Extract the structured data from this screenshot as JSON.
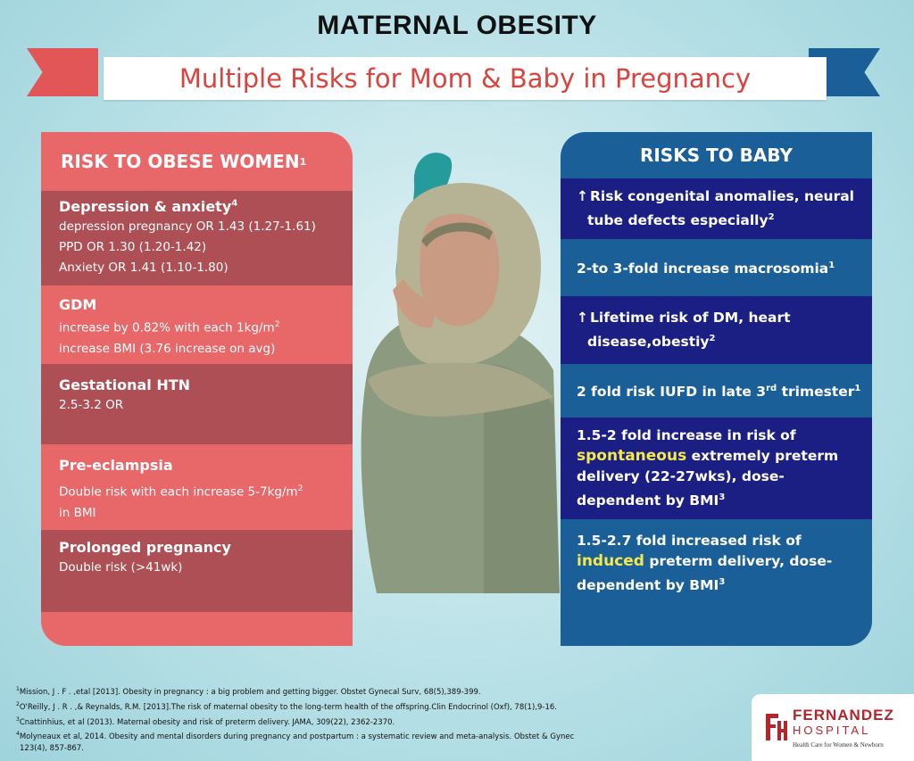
{
  "title": "MATERNAL OBESITY",
  "subtitle": "Multiple Risks for Mom & Baby in Pregnancy",
  "colors": {
    "red_panel": "#e86769",
    "red_dark_row": "#ad4f54",
    "blue_panel": "#1a5f97",
    "navy_row": "#1b1f83",
    "highlight": "#f5e84b",
    "title_red": "#d9443f"
  },
  "left": {
    "header": "RISK TO OBESE WOMEN",
    "header_ref": "1",
    "items": [
      {
        "title": "Depression & anxiety",
        "ref": "4",
        "lines": [
          "depression pregnancy OR 1.43 (1.27-1.61)",
          "PPD OR 1.30 (1.20-1.42)",
          "Anxiety OR 1.41 (1.10-1.80)"
        ]
      },
      {
        "title": "GDM",
        "line1a": "increase by 0.82% with each 1kg/m",
        "line1sup": "2",
        "line2": "increase BMI (3.76 increase on avg)"
      },
      {
        "title": "Gestational HTN",
        "lines": [
          "2.5-3.2 OR"
        ]
      },
      {
        "title": "Pre-eclampsia",
        "line1a": "Double risk with each increase 5-7kg/m",
        "line1sup": "2",
        "line2": "in BMI"
      },
      {
        "title": "Prolonged pregnancy",
        "lines": [
          "Double risk (>41wk)"
        ]
      }
    ]
  },
  "right": {
    "header": "RISKS TO BABY",
    "items": [
      {
        "l1": "Risk congenital anomalies, neural",
        "l2": "tube defects especially",
        "ref": "2",
        "arrow": "up-arrow-icon"
      },
      {
        "text": "2-to 3-fold increase macrosomia",
        "ref": "1"
      },
      {
        "l1": "Lifetime risk of DM, heart",
        "l2": "disease,obestiy",
        "ref": "2",
        "arrow": "up-arrow-icon"
      },
      {
        "a": "2 fold risk IUFD in late 3",
        "sup": "rd",
        "b": " trimester",
        "ref": "1"
      },
      {
        "l1": "1.5-2 fold increase in risk of",
        "hl": "spontaneous",
        "l2b": " extremely preterm",
        "l3": "delivery (22-27wks), dose-",
        "l4": "dependent by BMI",
        "ref": "3"
      },
      {
        "l1": "1.5-2.7 fold increased risk of",
        "hl": "induced",
        "l2b": " preterm delivery, dose-",
        "l3": "dependent by BMI",
        "ref": "3"
      }
    ]
  },
  "references": [
    {
      "num": "1",
      "text": "Mission, J . F . ,etal [2013]. Obesity in pregnancy : a big problem and getting bigger. Obstet Gynecal Surv, 68(5),389-399."
    },
    {
      "num": "2",
      "text": "O'Reilly, J . R . ,& Reynalds, R.M. [2013].The risk of maternal obesity to the long-term health of the offspring.Clin Endocrinol (Oxf), 78(1),9-16."
    },
    {
      "num": "3",
      "text": "Cnattinhius, et al (2013). Maternal obesity and risk of preterm delivery. JAMA, 309(22), 2362-2370."
    },
    {
      "num": "4",
      "text": "Molyneaux et al, 2014. Obesity and mental disorders during pregnancy and postpartum : a systematic review and meta-analysis. Obstet & Gynec"
    },
    {
      "num": "",
      "text": "123(4), 857-867."
    }
  ],
  "logo": {
    "name": "FERNANDEZ",
    "sub": "HOSPITAL",
    "tag": "Health Care for Women & Newborn"
  }
}
